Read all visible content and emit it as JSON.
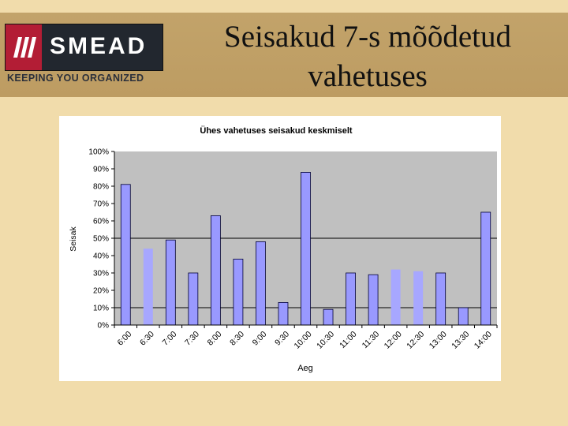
{
  "header": {
    "title": "Seisakud 7-s mõõdetud vahetuses",
    "logo_text": "SMEAD",
    "tagline": "KEEPING YOU ORGANIZED",
    "brand_color": "#b31d35"
  },
  "chart_data": {
    "type": "bar",
    "title": "Ühes vahetuses seisakud keskmiselt",
    "xlabel": "Aeg",
    "ylabel": "Seisak",
    "ylim": [
      0,
      100
    ],
    "yticks": [
      "0%",
      "10%",
      "20%",
      "30%",
      "40%",
      "50%",
      "60%",
      "70%",
      "80%",
      "90%",
      "100%"
    ],
    "categories": [
      "6:00",
      "6:30",
      "7:00",
      "7:30",
      "8:00",
      "8:30",
      "9:00",
      "9:30",
      "10:00",
      "10:30",
      "11:00",
      "11:30",
      "12:00",
      "12:30",
      "13:00",
      "13:30",
      "14:00"
    ],
    "values": [
      81,
      44,
      49,
      30,
      63,
      38,
      48,
      13,
      88,
      9,
      30,
      29,
      32,
      31,
      30,
      10,
      65
    ],
    "colors": {
      "plot_bg": "#c0c0c0",
      "bar_dark": "#9999ff",
      "bar_light": "#a7a7ff",
      "gridline": "#000000"
    },
    "grid": true
  }
}
